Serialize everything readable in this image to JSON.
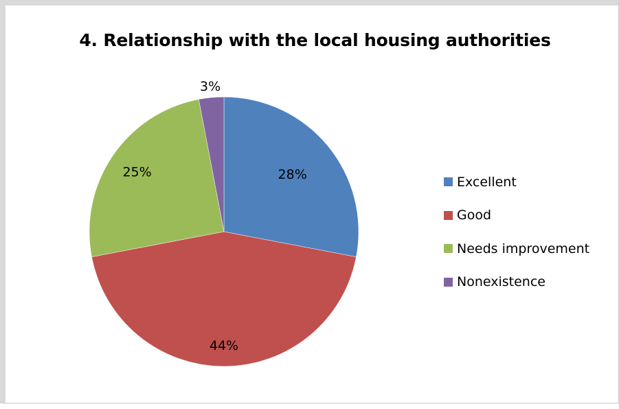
{
  "chart_data": {
    "type": "pie",
    "title": "4. Relationship with the local housing authorities",
    "categories": [
      "Excellent",
      "Good",
      "Needs improvement",
      "Nonexistence"
    ],
    "values": [
      28,
      44,
      25,
      3
    ],
    "data_labels": [
      "28%",
      "44%",
      "25%",
      "3%"
    ],
    "colors": [
      "#4f81bd",
      "#c0504d",
      "#9bbb59",
      "#8064a2"
    ],
    "legend_position": "right",
    "start_angle": "12 o'clock, clockwise"
  }
}
